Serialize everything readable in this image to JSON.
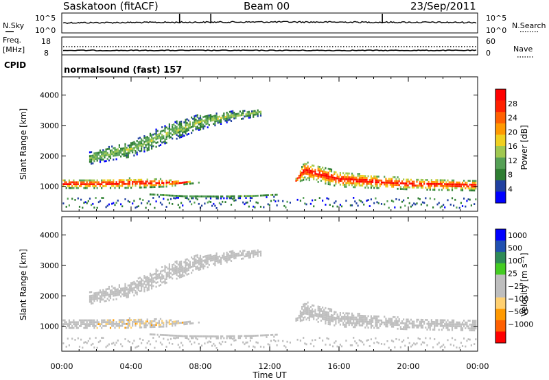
{
  "header": {
    "station": "Saskatoon (fitACF)",
    "beam": "Beam 00",
    "date": "23/Sep/2011"
  },
  "noise_panel": {
    "left_label": "N.Sky",
    "right_label": "N.Search",
    "left_ticks": [
      "10^5",
      "10^0"
    ],
    "right_ticks": [
      "10^5",
      "10^0"
    ]
  },
  "freq_panel": {
    "left_label_line1": "Freq.",
    "left_label_line2": "[MHz]",
    "right_label": "Nave",
    "left_ticks": [
      "18",
      "8"
    ],
    "right_ticks": [
      "60",
      "0"
    ]
  },
  "cpid_panel": {
    "label": "CPID",
    "text": "normalsound (fast) 157"
  },
  "colors": {
    "power_scale": [
      "#0000ff",
      "#2040a0",
      "#2e7d32",
      "#55a055",
      "#a0c850",
      "#f0d020",
      "#ff9900",
      "#ff6000",
      "#ff2000",
      "#ff0000"
    ],
    "velocity_scale": [
      "#ff0000",
      "#ff6000",
      "#ff9900",
      "#ffd070",
      "#bebebe",
      "#bebebe",
      "#44cc22",
      "#2e8b57",
      "#2050b0",
      "#0000ff"
    ],
    "ground_scatter": "#bebebe"
  },
  "chart_data": [
    {
      "type": "heatmap",
      "panel": "power",
      "xlabel": "",
      "ylabel": "Slant Range [km]",
      "ylim": [
        180,
        4600
      ],
      "yticks": [
        "1000",
        "2000",
        "3000",
        "4000"
      ],
      "xlim_hours": [
        0,
        24
      ],
      "colorbar_label": "Power [dB]",
      "colorbar_ticks": [
        "4",
        "8",
        "12",
        "16",
        "20",
        "24",
        "28"
      ],
      "colorbar_range": [
        0,
        30
      ],
      "echo_bands": [
        {
          "name": "main-band",
          "range_km": [
            [
              0,
              1050
            ],
            [
              2,
              1050
            ],
            [
              4,
              1080
            ],
            [
              6,
              1080
            ],
            [
              8,
              1100
            ],
            [
              10,
              1100
            ],
            [
              13.3,
              1050
            ],
            [
              14,
              1500
            ],
            [
              16,
              1200
            ],
            [
              20,
              1050
            ],
            [
              24,
              1000
            ]
          ],
          "half_width_km": [
            140,
            140,
            160,
            120,
            0,
            0,
            0,
            300,
            240,
            180,
            170
          ],
          "power_db": 26
        },
        {
          "name": "upper-arc",
          "range_km": [
            [
              1.5,
              1900
            ],
            [
              4,
              2200
            ],
            [
              6,
              2700
            ],
            [
              8,
              3100
            ],
            [
              10,
              3300
            ],
            [
              11.5,
              3400
            ]
          ],
          "half_width_km": [
            200,
            250,
            300,
            250,
            150,
            100
          ],
          "power_db": 12
        },
        {
          "name": "near-range",
          "range_km": [
            [
              5,
              700
            ],
            [
              7,
              630
            ],
            [
              9,
              620
            ],
            [
              11,
              650
            ],
            [
              12.5,
              680
            ]
          ],
          "half_width_km": [
            60,
            50,
            50,
            60,
            50
          ],
          "power_db": 10
        }
      ]
    },
    {
      "type": "heatmap",
      "panel": "velocity",
      "xlabel": "Time UT",
      "ylabel": "Slant Range [km]",
      "ylim": [
        180,
        4600
      ],
      "yticks": [
        "1000",
        "2000",
        "3000",
        "4000"
      ],
      "xticks": [
        "00:00",
        "04:00",
        "08:00",
        "12:00",
        "16:00",
        "20:00",
        "00:00"
      ],
      "xlim_hours": [
        0,
        24
      ],
      "colorbar_label": "Velocity [m s⁻¹]",
      "colorbar_ticks": [
        "1000",
        "500",
        "100",
        "25",
        "−25",
        "−100",
        "−500",
        "−1000"
      ],
      "colorbar_range": [
        -1200,
        1200
      ]
    }
  ]
}
